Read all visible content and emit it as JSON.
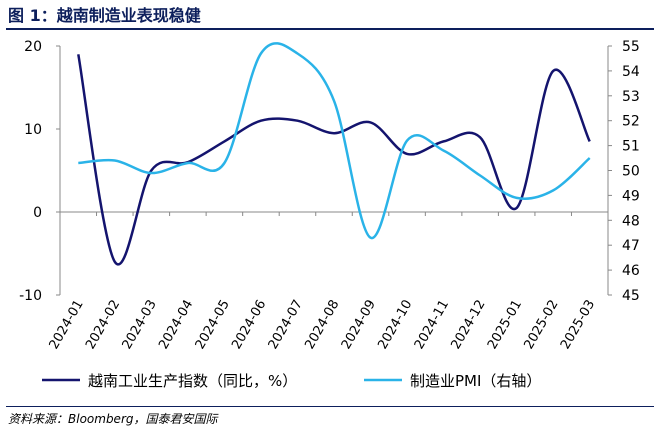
{
  "header": {
    "title": "图 1：越南制造业表现稳健"
  },
  "footer": {
    "source": "资料来源：Bloomberg，国泰君安国际"
  },
  "colors": {
    "title": "#0d1f5c",
    "series1": "#14146e",
    "series2": "#2ab3e8",
    "axis": "#888888"
  },
  "chart_data": {
    "type": "line",
    "title": "",
    "xlabel": "",
    "ylabel_left": "",
    "ylabel_right": "",
    "x": [
      "2024-01",
      "2024-02",
      "2024-03",
      "2024-04",
      "2024-05",
      "2024-06",
      "2024-07",
      "2024-08",
      "2024-09",
      "2024-10",
      "2024-11",
      "2024-12",
      "2025-01",
      "2025-02",
      "2025-03"
    ],
    "ylim_left": [
      -10,
      20
    ],
    "yticks_left": [
      -10,
      0,
      10,
      20
    ],
    "ylim_right": [
      45,
      55
    ],
    "yticks_right": [
      45,
      46,
      47,
      48,
      49,
      50,
      51,
      52,
      53,
      54,
      55
    ],
    "grid": false,
    "legend_position": "bottom",
    "series": [
      {
        "name": "越南工业生产指数（同比，%）",
        "axis": "left",
        "color": "#14146e",
        "values": [
          19.0,
          -6.0,
          5.0,
          6.0,
          8.5,
          11.0,
          11.0,
          9.5,
          10.8,
          7.0,
          8.5,
          9.0,
          0.5,
          17.0,
          8.5
        ]
      },
      {
        "name": "制造业PMI（右轴）",
        "axis": "right",
        "color": "#2ab3e8",
        "values": [
          50.3,
          50.4,
          49.9,
          50.3,
          50.3,
          54.7,
          54.7,
          52.8,
          47.3,
          51.2,
          50.8,
          49.8,
          48.9,
          49.2,
          50.5
        ]
      }
    ]
  }
}
